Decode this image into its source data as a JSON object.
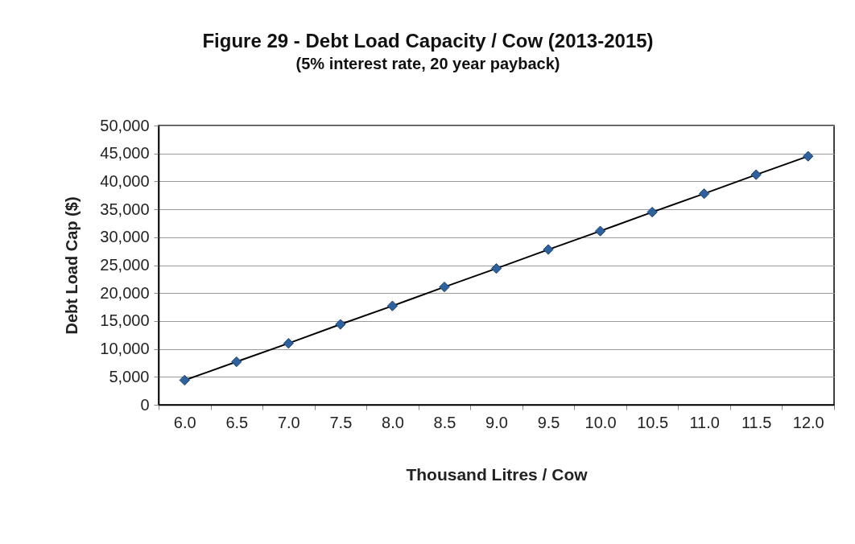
{
  "chart_data": {
    "type": "line",
    "title": "Figure 29 - Debt Load Capacity / Cow (2013-2015)",
    "subtitle": "(5% interest rate, 20 year payback)",
    "xlabel": "Thousand Litres / Cow",
    "ylabel": "Debt Load Cap ($)",
    "categories": [
      "6.0",
      "6.5",
      "7.0",
      "7.5",
      "8.0",
      "8.5",
      "9.0",
      "9.5",
      "10.0",
      "10.5",
      "11.0",
      "11.5",
      "12.0"
    ],
    "series": [
      {
        "color": "#2c62a0",
        "values": [
          4400,
          7700,
          11000,
          14400,
          17700,
          21100,
          24400,
          27800,
          31100,
          34500,
          37800,
          41200,
          44500
        ]
      }
    ],
    "ylim": [
      0,
      50000
    ],
    "yticks": [
      0,
      {
        "value": 5000,
        "label": "5,000"
      },
      {
        "value": 10000,
        "label": "10,000"
      },
      {
        "value": 15000,
        "label": "15,000"
      },
      {
        "value": 20000,
        "label": "20,000"
      },
      {
        "value": 25000,
        "label": "25,000"
      },
      {
        "value": 30000,
        "label": "30,000"
      },
      {
        "value": 35000,
        "label": "35,000"
      },
      {
        "value": 40000,
        "label": "40,000"
      },
      {
        "value": 45000,
        "label": "45,000"
      },
      {
        "value": 50000,
        "label": "50,000"
      }
    ],
    "grid": "y",
    "marker": "diamond",
    "line_style": "solid"
  }
}
